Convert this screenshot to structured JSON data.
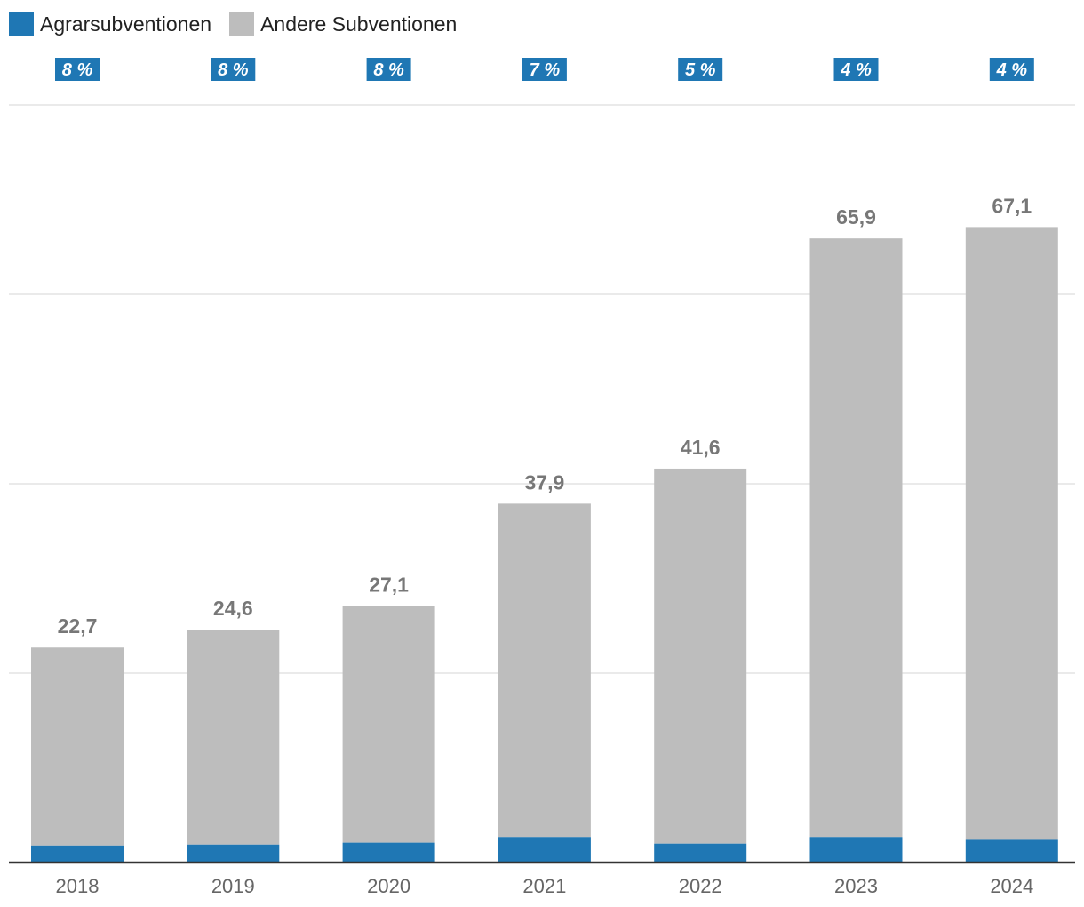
{
  "colors": {
    "agrar": "#1f77b4",
    "andere": "#bdbdbd",
    "grid": "#e4e4e4",
    "axis": "#333333",
    "value_label": "#777777",
    "tick_label": "#666666",
    "badge_text": "#ffffff"
  },
  "chart_data": {
    "type": "bar",
    "stacked": true,
    "categories": [
      "2018",
      "2019",
      "2020",
      "2021",
      "2022",
      "2023",
      "2024"
    ],
    "series": [
      {
        "name": "Agrarsubventionen",
        "values": [
          1.8,
          1.9,
          2.1,
          2.7,
          2.0,
          2.7,
          2.4
        ]
      },
      {
        "name": "Andere Subventionen",
        "values": [
          20.9,
          22.7,
          25.0,
          35.2,
          39.6,
          63.2,
          64.7
        ]
      }
    ],
    "totals": [
      22.7,
      24.6,
      27.1,
      37.9,
      41.6,
      65.9,
      67.1
    ],
    "total_labels": [
      "22,7",
      "24,6",
      "27,1",
      "37,9",
      "41,6",
      "65,9",
      "67,1"
    ],
    "share_labels": [
      "8 %",
      "8 %",
      "8 %",
      "7 %",
      "5 %",
      "4 %",
      "4 %"
    ],
    "ylim": [
      0,
      80
    ],
    "gridlines": [
      0,
      20,
      40,
      60,
      80
    ],
    "legend_position": "top-left",
    "title": "",
    "xlabel": "",
    "ylabel": ""
  }
}
